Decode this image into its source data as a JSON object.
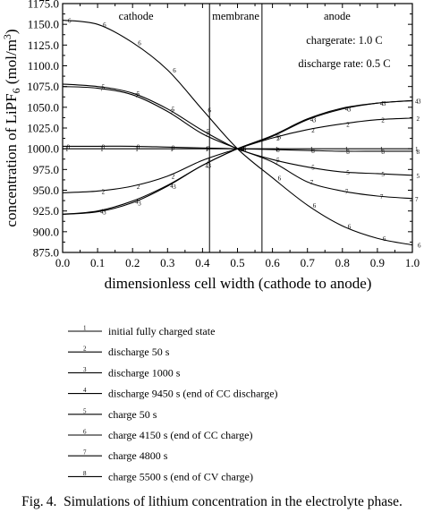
{
  "chart_data": {
    "type": "line",
    "xlabel": "dimensionless cell width (cathode to anode)",
    "ylabel": "concentration of LiPF6 (mol/m3)",
    "ylabel_main": "concentration of LiPF",
    "ylabel_sub": "6",
    "ylabel_unit": " (mol/m",
    "ylabel_sup": "3",
    "ylabel_close": ")",
    "xlim": [
      0.0,
      1.0
    ],
    "ylim": [
      875.0,
      1175.0
    ],
    "xticks": [
      "0.0",
      "0.1",
      "0.2",
      "0.3",
      "0.4",
      "0.5",
      "0.6",
      "0.7",
      "0.8",
      "0.9",
      "1.0"
    ],
    "yticks": [
      "875.0",
      "900.0",
      "925.0",
      "950.0",
      "975.0",
      "1000.0",
      "1025.0",
      "1050.0",
      "1075.0",
      "1100.0",
      "1125.0",
      "1150.0",
      "1175.0"
    ],
    "regions": [
      {
        "label": "cathode",
        "x_end": 0.42
      },
      {
        "label": "membrane",
        "x_end": 0.57
      },
      {
        "label": "anode",
        "x_end": 1.0
      }
    ],
    "annotations": [
      "chargerate: 1.0 C",
      "discharge rate: 0.5 C"
    ],
    "x": [
      0.0,
      0.1,
      0.2,
      0.3,
      0.4,
      0.5,
      0.6,
      0.7,
      0.8,
      0.9,
      1.0
    ],
    "series": [
      {
        "marker": "1",
        "name": "initial fully charged state",
        "values": [
          1000,
          1000,
          1000,
          1000,
          1000,
          1000,
          1000,
          1000,
          1000,
          1000,
          1000
        ]
      },
      {
        "marker": "2",
        "name": "discharge 50 s",
        "values": [
          947,
          949,
          955,
          967,
          986,
          1000,
          1013,
          1023,
          1030,
          1035,
          1037
        ]
      },
      {
        "marker": "3",
        "name": "discharge 1000 s",
        "values": [
          921,
          924,
          935,
          955,
          980,
          1000,
          1015,
          1035,
          1048,
          1055,
          1058
        ]
      },
      {
        "marker": "4",
        "name": "discharge 9450 s (end of CC discharge)",
        "values": [
          921,
          925,
          937,
          956,
          980,
          1000,
          1016,
          1036,
          1049,
          1055,
          1058
        ]
      },
      {
        "marker": "5",
        "name": "charge 50 s",
        "values": [
          1078,
          1075,
          1067,
          1048,
          1022,
          1000,
          987,
          978,
          972,
          970,
          968
        ]
      },
      {
        "marker": "6",
        "name": "charge 4150 s (end of CC charge)",
        "values": [
          1155,
          1150,
          1128,
          1095,
          1047,
          1000,
          965,
          932,
          907,
          892,
          884
        ]
      },
      {
        "marker": "7",
        "name": "charge 4800 s",
        "values": [
          1075,
          1073,
          1065,
          1045,
          1018,
          1000,
          984,
          960,
          949,
          943,
          940
        ]
      },
      {
        "marker": "8",
        "name": "charge 5500 s (end of CV charge)",
        "values": [
          1003,
          1003,
          1003,
          1002,
          1001,
          1000,
          999,
          998,
          997,
          997,
          997
        ]
      }
    ]
  },
  "legend_title": "",
  "caption": {
    "prefix": "Fig.",
    "number": "4.",
    "text": "Simulations of lithium concentration in the electrolyte phase."
  }
}
